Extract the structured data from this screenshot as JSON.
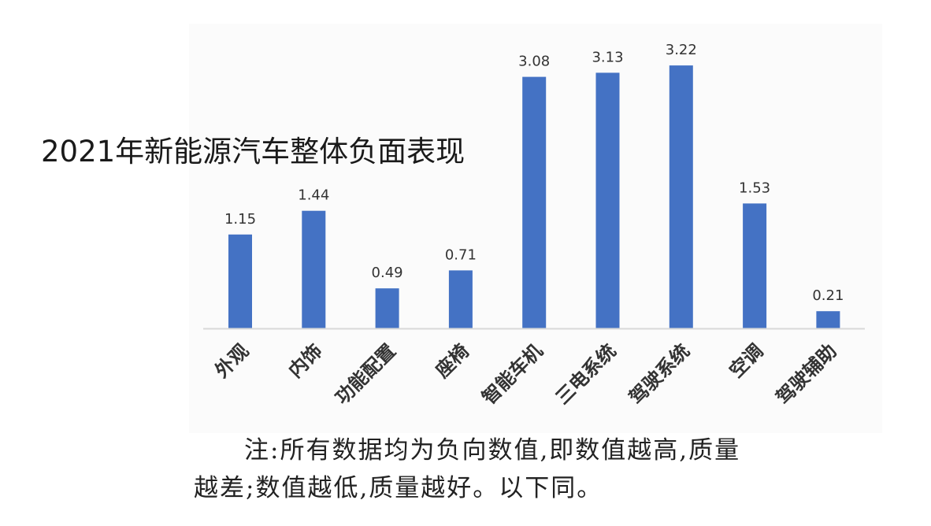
{
  "title": "2021年新能源汽车整体负面表现",
  "note": {
    "line1": "注:所有数据均为负向数值,即数值越高,质量",
    "line2": "越差;数值越低,质量越好。以下同。"
  },
  "colors": {
    "bar": "#4472c4",
    "axis": "#d9d9d9"
  },
  "chart_data": {
    "type": "bar",
    "title": "2021年新能源汽车整体负面表现",
    "xlabel": "",
    "ylabel": "",
    "categories": [
      "外观",
      "内饰",
      "功能配置",
      "座椅",
      "智能车机",
      "三电系统",
      "驾驶系统",
      "空调",
      "驾驶辅助"
    ],
    "values": [
      1.15,
      1.44,
      0.49,
      0.71,
      3.08,
      3.13,
      3.22,
      1.53,
      0.21
    ],
    "data_labels": [
      "1.15",
      "1.44",
      "0.49",
      "0.71",
      "3.08",
      "3.13",
      "3.22",
      "1.53",
      "0.21"
    ],
    "ylim": [
      0,
      3.25
    ],
    "grid": false,
    "legend": "none"
  }
}
